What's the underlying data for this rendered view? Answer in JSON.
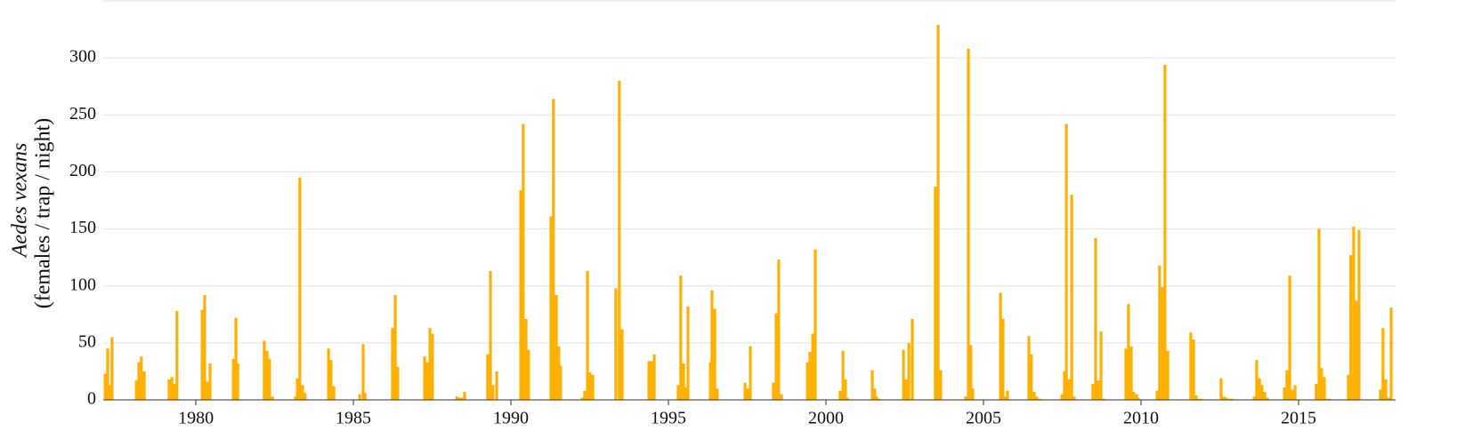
{
  "chart_data": {
    "type": "bar",
    "ylabel": {
      "species": "Aedes vexans",
      "units": "(females / trap / night)"
    },
    "color": "#ffb000",
    "xlim": [
      1977.06,
      2018.08
    ],
    "ylim": [
      0,
      350
    ],
    "xticks": [
      1980,
      1985,
      1990,
      1995,
      2000,
      2005,
      2010,
      2015
    ],
    "yticks": [
      0,
      50,
      100,
      150,
      200,
      250,
      300
    ],
    "grid": true,
    "x": [
      1977.12,
      1977.2,
      1977.29,
      1977.34,
      1978.11,
      1978.19,
      1978.27,
      1978.36,
      1979.15,
      1979.24,
      1979.32,
      1979.4,
      1980.2,
      1980.28,
      1980.37,
      1980.45,
      1981.19,
      1981.27,
      1981.33,
      1982.17,
      1982.26,
      1982.34,
      1982.43,
      1983.16,
      1983.22,
      1983.3,
      1983.39,
      1983.47,
      1984.21,
      1984.29,
      1984.38,
      1985.2,
      1985.31,
      1985.37,
      1986.24,
      1986.33,
      1986.41,
      1987.26,
      1987.34,
      1987.43,
      1987.51,
      1988.28,
      1988.36,
      1988.44,
      1988.53,
      1989.26,
      1989.35,
      1989.43,
      1989.55,
      1990.31,
      1990.39,
      1990.48,
      1990.56,
      1991.27,
      1991.35,
      1991.44,
      1991.52,
      1991.58,
      1992.26,
      1992.34,
      1992.43,
      1992.51,
      1992.6,
      1993.33,
      1993.44,
      1993.53,
      1994.38,
      1994.46,
      1994.55,
      1995.31,
      1995.39,
      1995.48,
      1995.53,
      1995.62,
      1996.33,
      1996.38,
      1996.47,
      1996.55,
      1997.43,
      1997.51,
      1997.6,
      1998.33,
      1998.42,
      1998.5,
      1998.59,
      1999.41,
      1999.49,
      1999.58,
      1999.66,
      2000.45,
      2000.54,
      2000.62,
      2000.68,
      2001.47,
      2001.55,
      2001.61,
      2001.69,
      2002.46,
      2002.54,
      2002.63,
      2002.74,
      2003.47,
      2003.56,
      2003.64,
      2004.43,
      2004.52,
      2004.6,
      2004.66,
      2005.54,
      2005.62,
      2005.68,
      2005.76,
      2006.44,
      2006.52,
      2006.61,
      2006.69,
      2006.78,
      2007.49,
      2007.57,
      2007.63,
      2007.71,
      2007.8,
      2007.88,
      2008.47,
      2008.56,
      2008.64,
      2008.73,
      2008.81,
      2009.52,
      2009.6,
      2009.69,
      2009.77,
      2009.86,
      2009.91,
      2010.51,
      2010.59,
      2010.68,
      2010.76,
      2010.85,
      2011.58,
      2011.67,
      2011.75,
      2011.84,
      2011.92,
      2012.54,
      2012.63,
      2012.71,
      2012.8,
      2012.88,
      2013.59,
      2013.67,
      2013.76,
      2013.84,
      2013.93,
      2014.01,
      2014.55,
      2014.63,
      2014.72,
      2014.8,
      2014.89,
      2015.56,
      2015.65,
      2015.73,
      2015.82,
      2015.9,
      2015.99,
      2016.58,
      2016.66,
      2016.75,
      2016.83,
      2016.92,
      2017.6,
      2017.68,
      2017.77,
      2017.85,
      2017.94
    ],
    "values": [
      23,
      45,
      13,
      55,
      17,
      33,
      38,
      25,
      18,
      20,
      14,
      78,
      79,
      92,
      16,
      32,
      36,
      72,
      32,
      52,
      43,
      36,
      3,
      3,
      19,
      195,
      13,
      6,
      45,
      35,
      12,
      5,
      49,
      6,
      63,
      92,
      29,
      38,
      33,
      63,
      58,
      3,
      2,
      2,
      7,
      40,
      113,
      13,
      25,
      184,
      242,
      71,
      44,
      161,
      264,
      92,
      47,
      30,
      2,
      8,
      113,
      24,
      22,
      98,
      280,
      62,
      34,
      34,
      40,
      13,
      109,
      32,
      11,
      82,
      33,
      96,
      80,
      10,
      15,
      10,
      47,
      15,
      76,
      123,
      5,
      33,
      42,
      58,
      132,
      8,
      43,
      18,
      2,
      26,
      10,
      3,
      1,
      44,
      18,
      50,
      71,
      187,
      329,
      26,
      3,
      308,
      48,
      10,
      94,
      71,
      3,
      8,
      56,
      40,
      7,
      3,
      1,
      5,
      25,
      242,
      18,
      180,
      3,
      14,
      142,
      17,
      60,
      1,
      45,
      84,
      47,
      7,
      5,
      2,
      8,
      118,
      99,
      294,
      43,
      59,
      53,
      4,
      1,
      1,
      19,
      3,
      2,
      1,
      1,
      3,
      35,
      19,
      13,
      7,
      2,
      11,
      26,
      109,
      9,
      13,
      14,
      150,
      28,
      20,
      1,
      1,
      22,
      127,
      152,
      87,
      149,
      9,
      63,
      18,
      2,
      81
    ]
  }
}
